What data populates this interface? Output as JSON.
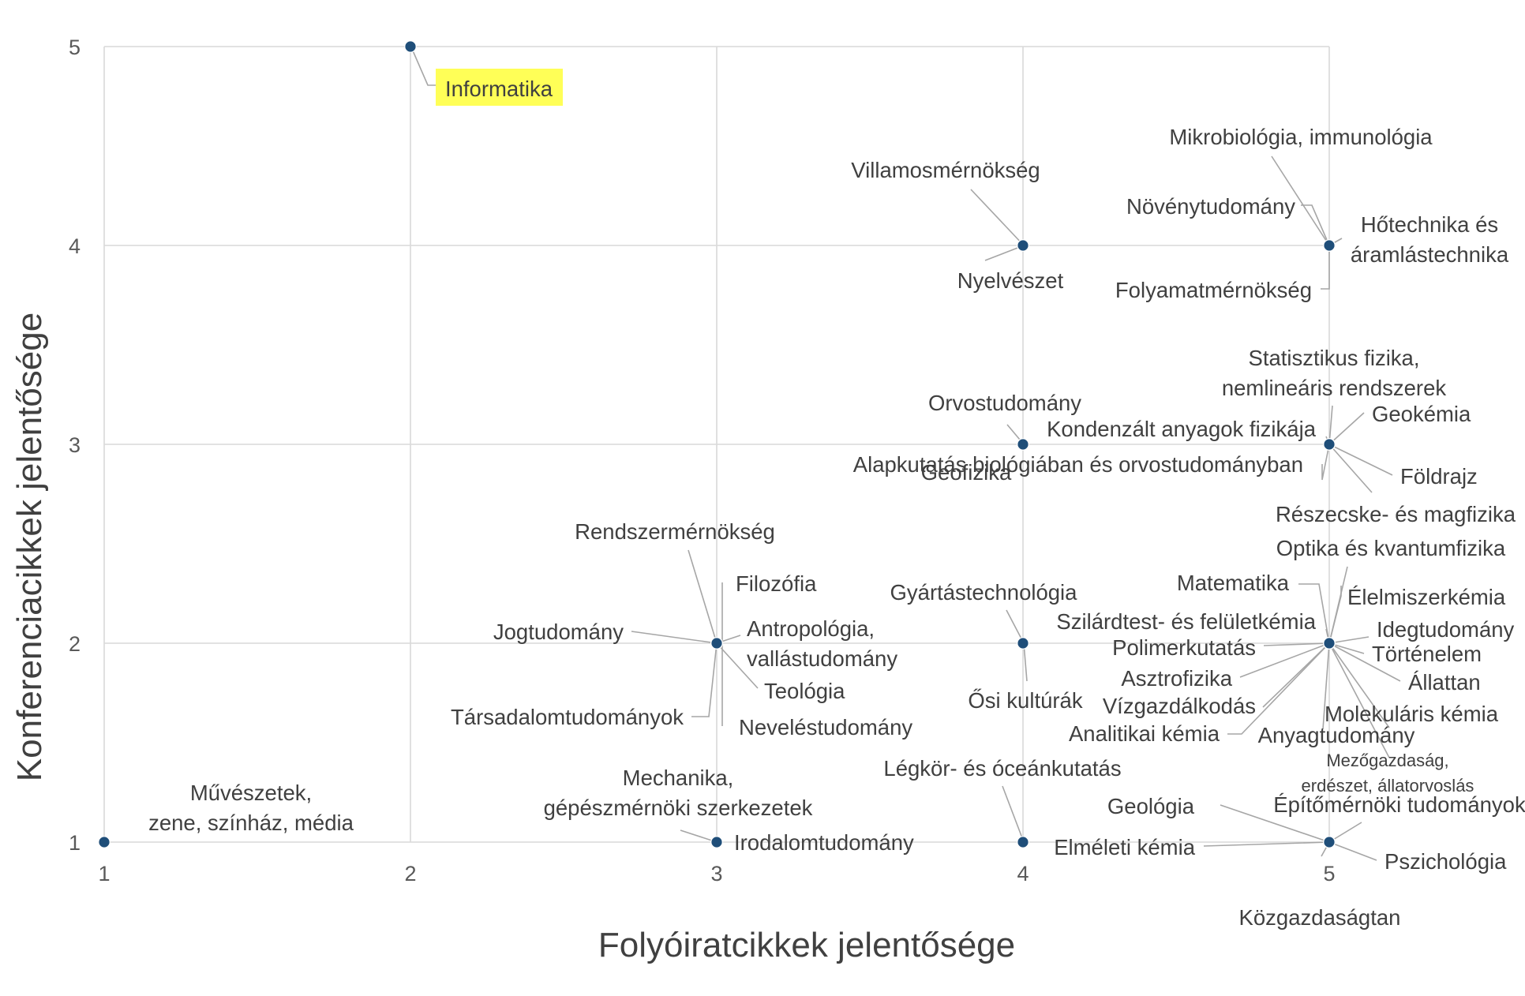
{
  "chart_data": {
    "type": "scatter",
    "xlabel": "Folyóiratcikkek jelentősége",
    "ylabel": "Konferenciacikkek jelentősége",
    "xlim": [
      1,
      5
    ],
    "ylim": [
      1,
      5
    ],
    "x_ticks": [
      "1",
      "2",
      "3",
      "4",
      "5"
    ],
    "y_ticks": [
      "1",
      "2",
      "3",
      "4",
      "5"
    ],
    "grid": true,
    "colors": {
      "point": "#1f4e79",
      "highlight": "#ffff57",
      "grid": "#d9d9d9",
      "leader": "#a6a6a6",
      "text": "#404040"
    },
    "points": [
      {
        "x": 1,
        "y": 1,
        "label": "Művészetek, zene, színház, média"
      },
      {
        "x": 2,
        "y": 5,
        "label": "Informatika",
        "highlight": true
      },
      {
        "x": 3,
        "y": 2,
        "label": "Rendszermérnökség"
      },
      {
        "x": 3,
        "y": 2,
        "label": "Filozófia"
      },
      {
        "x": 3,
        "y": 2,
        "label": "Jogtudomány"
      },
      {
        "x": 3,
        "y": 2,
        "label": "Antropológia, vallástudomány"
      },
      {
        "x": 3,
        "y": 2,
        "label": "Teológia"
      },
      {
        "x": 3,
        "y": 2,
        "label": "Társadalomtudományok"
      },
      {
        "x": 3,
        "y": 2,
        "label": "Neveléstudomány"
      },
      {
        "x": 3,
        "y": 1,
        "label": "Mechanika, gépészmérnöki szerkezetek"
      },
      {
        "x": 3,
        "y": 1,
        "label": "Irodalomtudomány"
      },
      {
        "x": 4,
        "y": 4,
        "label": "Villamosmérnökség"
      },
      {
        "x": 4,
        "y": 4,
        "label": "Nyelvészet"
      },
      {
        "x": 4,
        "y": 3,
        "label": "Orvostudomány"
      },
      {
        "x": 4,
        "y": 3,
        "label": "Geofizika"
      },
      {
        "x": 4,
        "y": 2,
        "label": "Gyártástechnológia"
      },
      {
        "x": 4,
        "y": 2,
        "label": "Ősi kultúrák"
      },
      {
        "x": 4,
        "y": 1,
        "label": "Légkör- és óceánkutatás"
      },
      {
        "x": 5,
        "y": 4,
        "label": "Mikrobiológia, immunológia"
      },
      {
        "x": 5,
        "y": 4,
        "label": "Növénytudomány"
      },
      {
        "x": 5,
        "y": 4,
        "label": "Hőtechnika és áramlástechnika"
      },
      {
        "x": 5,
        "y": 4,
        "label": "Folyamatmérnökség"
      },
      {
        "x": 5,
        "y": 3,
        "label": "Statisztikus fizika, nemlineáris rendszerek"
      },
      {
        "x": 5,
        "y": 3,
        "label": "Kondenzált anyagok fizikája"
      },
      {
        "x": 5,
        "y": 3,
        "label": "Geokémia"
      },
      {
        "x": 5,
        "y": 3,
        "label": "Alapkutatás biológiában és orvostudományban"
      },
      {
        "x": 5,
        "y": 3,
        "label": "Földrajz"
      },
      {
        "x": 5,
        "y": 3,
        "label": "Részecske- és magfizika"
      },
      {
        "x": 5,
        "y": 2,
        "label": "Optika és kvantumfizika"
      },
      {
        "x": 5,
        "y": 2,
        "label": "Matematika"
      },
      {
        "x": 5,
        "y": 2,
        "label": "Élelmiszerkémia"
      },
      {
        "x": 5,
        "y": 2,
        "label": "Szilárdtest- és felületkémia"
      },
      {
        "x": 5,
        "y": 2,
        "label": "Idegtudomány"
      },
      {
        "x": 5,
        "y": 2,
        "label": "Polimerkutatás"
      },
      {
        "x": 5,
        "y": 2,
        "label": "Történelem"
      },
      {
        "x": 5,
        "y": 2,
        "label": "Asztrofizika"
      },
      {
        "x": 5,
        "y": 2,
        "label": "Állattan"
      },
      {
        "x": 5,
        "y": 2,
        "label": "Vízgazdálkodás"
      },
      {
        "x": 5,
        "y": 2,
        "label": "Molekuláris kémia"
      },
      {
        "x": 5,
        "y": 2,
        "label": "Analitikai kémia"
      },
      {
        "x": 5,
        "y": 2,
        "label": "Anyagtudomány"
      },
      {
        "x": 5,
        "y": 2,
        "label": "Mezőgazdaság, erdészet, állatorvoslás"
      },
      {
        "x": 5,
        "y": 1,
        "label": "Geológia"
      },
      {
        "x": 5,
        "y": 1,
        "label": "Építőmérnöki tudományok"
      },
      {
        "x": 5,
        "y": 1,
        "label": "Elméleti kémia"
      },
      {
        "x": 5,
        "y": 1,
        "label": "Pszichológia"
      },
      {
        "x": 5,
        "y": 1,
        "label": "Közgazdaságtan"
      }
    ]
  }
}
